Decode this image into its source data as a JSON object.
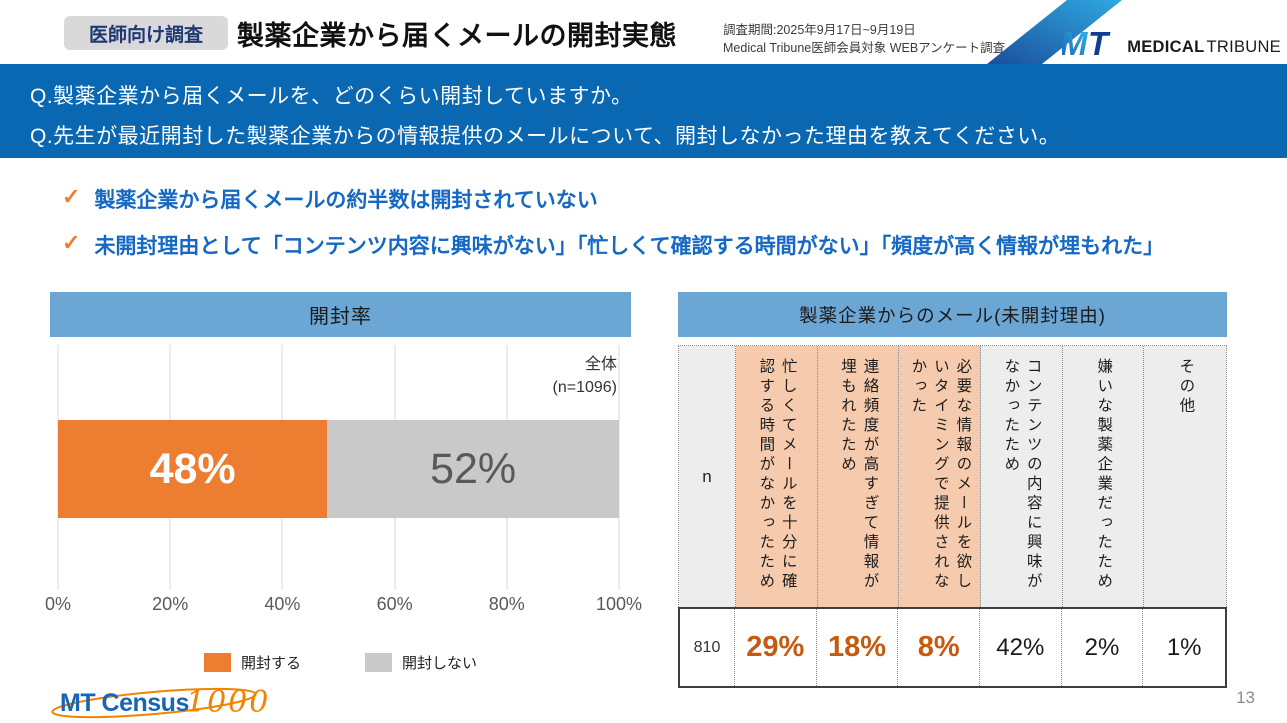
{
  "header": {
    "badge": "医師向け調査",
    "title": "製薬企業から届くメールの開封実態",
    "survey_period": "調査期間:2025年9月17日~9月19日",
    "survey_method": "Medical Tribune医師会員対象 WEBアンケート調査",
    "logo_mark": "MT",
    "logo_medical": "MEDICAL",
    "logo_tribune": "TRIBUNE"
  },
  "questions": {
    "q1": "Q.製薬企業から届くメールを、どのくらい開封していますか。",
    "q2": "Q.先生が最近開封した製薬企業からの情報提供のメールについて、開封しなかった理由を教えてください。"
  },
  "icons": {
    "check": "✓"
  },
  "takeaways": [
    {
      "text": "製薬企業から届くメールの約半数は開封されていない"
    },
    {
      "text": "未開封理由として「コンテンツ内容に興味がない」「忙しくて確認する時間がない」「頻度が高く情報が埋もれた」"
    }
  ],
  "chart_data": [
    {
      "type": "bar",
      "orientation": "horizontal-stacked",
      "title": "開封率",
      "group_label": "全体",
      "n_label": "(n=1096)",
      "series": [
        {
          "name": "開封する",
          "value": 48,
          "label": "48%",
          "color": "#ED7D31"
        },
        {
          "name": "開封しない",
          "value": 52,
          "label": "52%",
          "color": "#C9C9C9"
        }
      ],
      "x_ticks": [
        "0%",
        "20%",
        "40%",
        "60%",
        "80%",
        "100%"
      ],
      "xlim": [
        0,
        100
      ],
      "grid": true,
      "legend_position": "bottom"
    },
    {
      "type": "table",
      "title": "製薬企業からのメール(未開封理由)",
      "n_header": "n",
      "n_value": "810",
      "columns": [
        {
          "label": "忙しくてメールを十分に確認する時間がなかったため",
          "value": "29%",
          "highlight": true
        },
        {
          "label": "連絡頻度が高すぎて情報が埋もれたため",
          "value": "18%",
          "highlight": true
        },
        {
          "label": "必要な情報のメールを欲しいタイミングで提供されなかった",
          "value": "8%",
          "highlight": true
        },
        {
          "label": "コンテンツの内容に興味がなかったため",
          "value": "42%",
          "highlight": false
        },
        {
          "label": "嫌いな製薬企業だったため",
          "value": "2%",
          "highlight": false
        },
        {
          "label": "その他",
          "value": "1%",
          "highlight": false
        }
      ]
    }
  ],
  "footer": {
    "census_mt": "MT Census",
    "census_1000": "1000",
    "page_number": "13"
  },
  "colors": {
    "banner_blue": "#0A67B2",
    "panel_header_blue": "#6CA6D5",
    "accent_orange": "#ED7D31",
    "bar_gray": "#C9C9C9",
    "highlight_cell_bg": "#F6CBAD",
    "plain_cell_bg": "#EDEDED",
    "value_orange": "#C55A11",
    "takeaway_blue": "#1568C4",
    "badge_bg": "#D9D9D9",
    "badge_text": "#1F3875"
  }
}
